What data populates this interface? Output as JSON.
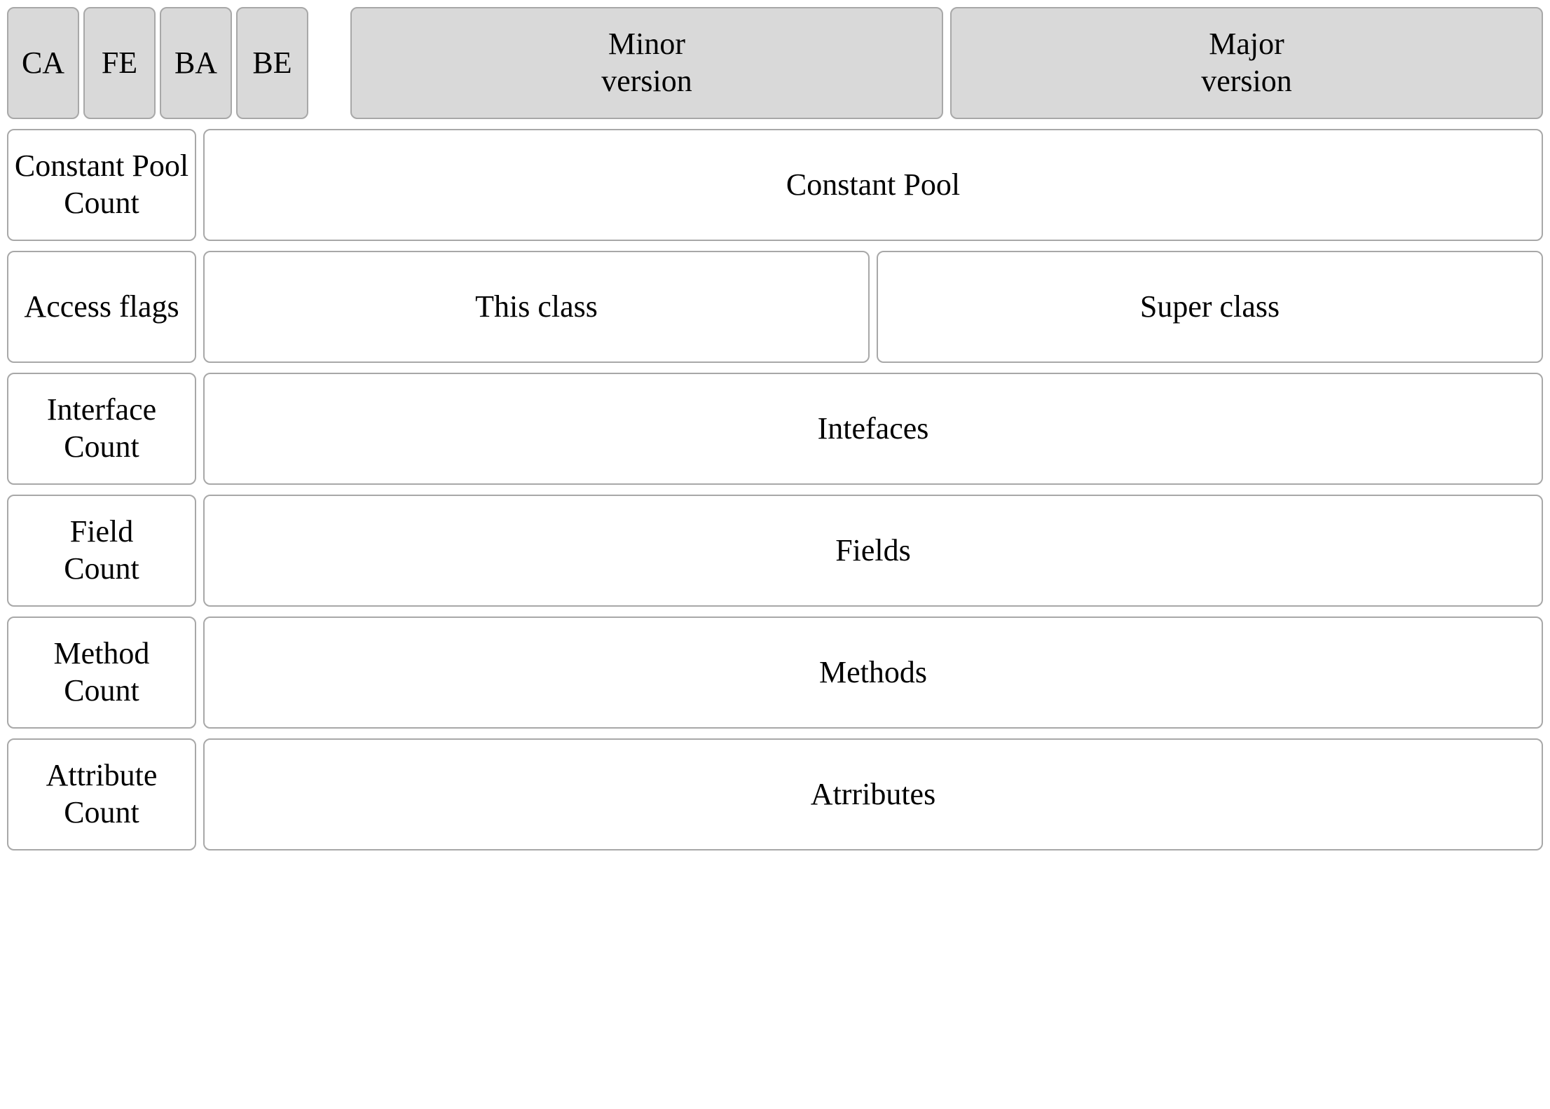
{
  "diagram": {
    "type": "table",
    "background_color": "#ffffff",
    "cell_border_color": "#a8a8a8",
    "cell_border_radius": 10,
    "header_fill_color": "#d9d9d9",
    "font_family": "Times New Roman",
    "font_size": 44,
    "text_color": "#000000",
    "row_gap": 14,
    "col_gap": 10,
    "header": {
      "magic_bytes": [
        "CA",
        "FE",
        "BA",
        "BE"
      ],
      "minor_version": "Minor\nversion",
      "major_version": "Major\nversion"
    },
    "rows": [
      {
        "left": "Constant Pool\nCount",
        "right": "Constant Pool"
      },
      {
        "left": "Access flags",
        "mid": "This class",
        "right": "Super class"
      },
      {
        "left": "Interface\nCount",
        "right": "Intefaces"
      },
      {
        "left": "Field\nCount",
        "right": "Fields"
      },
      {
        "left": "Method\nCount",
        "right": "Methods"
      },
      {
        "left": "Attribute\nCount",
        "right": "Atrributes"
      }
    ]
  }
}
